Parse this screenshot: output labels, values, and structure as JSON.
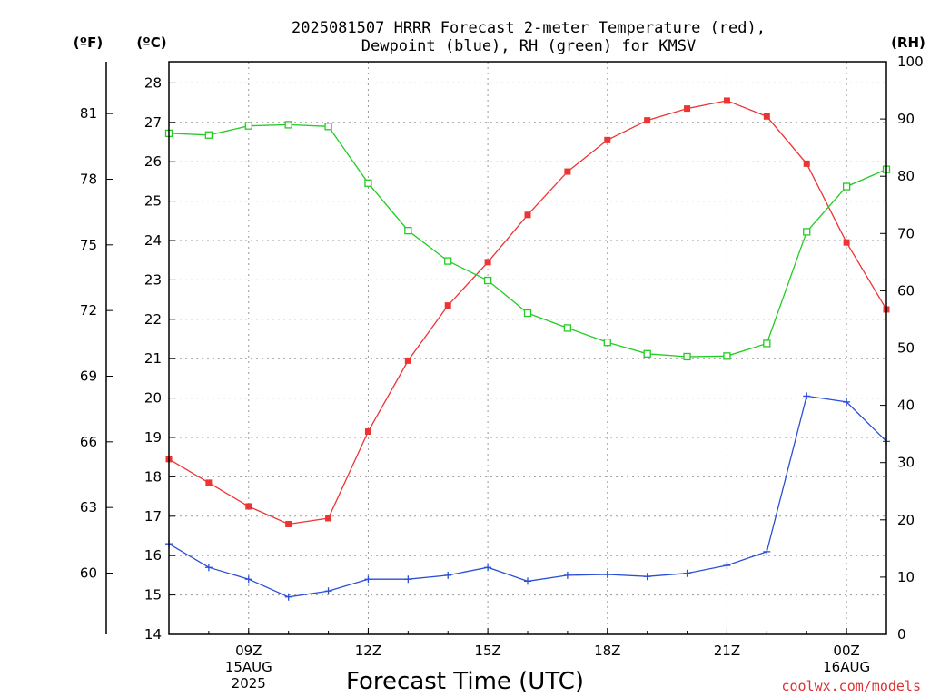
{
  "chart_data": {
    "type": "line",
    "title_lines": [
      "2025081507 HRRR Forecast 2-meter Temperature (red),",
      "Dewpoint (blue), RH (green) for KMSV"
    ],
    "xlabel": "Forecast Time (UTC)",
    "credit": "coolwx.com/models",
    "left_outer_unit": "(ºF)",
    "left_unit": "(ºC)",
    "right_unit": "(RH)",
    "x_hours": [
      7,
      8,
      9,
      10,
      11,
      12,
      13,
      14,
      15,
      16,
      17,
      18,
      19,
      20,
      21,
      22,
      23,
      24,
      25
    ],
    "x_ticks": [
      {
        "hour": 9,
        "lines": [
          "09Z",
          "15AUG",
          "2025"
        ]
      },
      {
        "hour": 12,
        "lines": [
          "12Z"
        ]
      },
      {
        "hour": 15,
        "lines": [
          "15Z"
        ]
      },
      {
        "hour": 18,
        "lines": [
          "18Z"
        ]
      },
      {
        "hour": 21,
        "lines": [
          "21Z"
        ]
      },
      {
        "hour": 24,
        "lines": [
          "00Z",
          "16AUG"
        ]
      }
    ],
    "xlim": [
      7,
      25
    ],
    "ylim_c": [
      14,
      28.6
    ],
    "yticks_c": [
      "14",
      "15",
      "16",
      "17",
      "18",
      "19",
      "20",
      "21",
      "22",
      "23",
      "24",
      "25",
      "26",
      "27",
      "28"
    ],
    "yticks_f": [
      "60",
      "63",
      "66",
      "69",
      "72",
      "75",
      "78",
      "81"
    ],
    "ylim_rh": [
      0,
      100
    ],
    "yticks_rh": [
      "0",
      "10",
      "20",
      "30",
      "40",
      "50",
      "60",
      "70",
      "80",
      "90",
      "100"
    ],
    "grid": true,
    "series": [
      {
        "name": "Temperature",
        "axis": "c",
        "color": "#ee3333",
        "marker": "filled-square",
        "values": [
          18.45,
          17.85,
          17.25,
          16.8,
          16.95,
          19.15,
          20.95,
          22.35,
          23.45,
          24.65,
          25.75,
          26.55,
          27.05,
          27.35,
          27.55,
          27.15,
          25.95,
          23.95,
          22.25
        ]
      },
      {
        "name": "Dewpoint",
        "axis": "c",
        "color": "#2a4fd6",
        "marker": "plus",
        "values": [
          16.3,
          15.7,
          15.4,
          14.95,
          15.1,
          15.4,
          15.4,
          15.5,
          15.7,
          15.35,
          15.5,
          15.52,
          15.47,
          15.55,
          15.75,
          16.1,
          20.05,
          19.9,
          18.9
        ]
      },
      {
        "name": "RH",
        "axis": "rh",
        "color": "#22cc22",
        "marker": "open-square",
        "values": [
          87.5,
          87.2,
          88.8,
          89.0,
          88.7,
          78.8,
          70.5,
          65.2,
          61.8,
          56.1,
          53.5,
          51.0,
          49.0,
          48.5,
          48.6,
          50.8,
          70.3,
          78.2,
          81.2
        ]
      }
    ]
  }
}
